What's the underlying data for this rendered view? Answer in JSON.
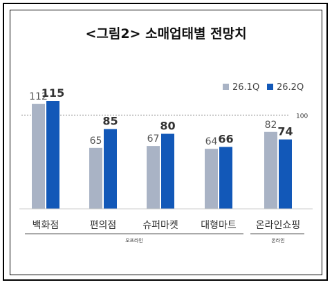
{
  "chart_data": {
    "type": "bar",
    "title": "<그림2> 소매업태별 전망치",
    "categories": [
      "백화점",
      "편의점",
      "슈퍼마켓",
      "대형마트",
      "온라인쇼핑"
    ],
    "series": [
      {
        "name": "26.1Q",
        "values": [
          112,
          65,
          67,
          64,
          82
        ],
        "color": "#a9b3c5"
      },
      {
        "name": "26.2Q",
        "values": [
          115,
          85,
          80,
          66,
          74
        ],
        "color": "#1258b8"
      }
    ],
    "reference": {
      "value": 100,
      "label": "100"
    },
    "groups": [
      {
        "label": "오프라인",
        "categories": [
          "백화점",
          "편의점",
          "슈퍼마켓",
          "대형마트"
        ]
      },
      {
        "label": "온라인",
        "categories": [
          "온라인쇼핑"
        ]
      }
    ],
    "ylim": [
      0,
      130
    ],
    "legend_position": "top-right",
    "grid": false,
    "xlabel": "",
    "ylabel": ""
  }
}
